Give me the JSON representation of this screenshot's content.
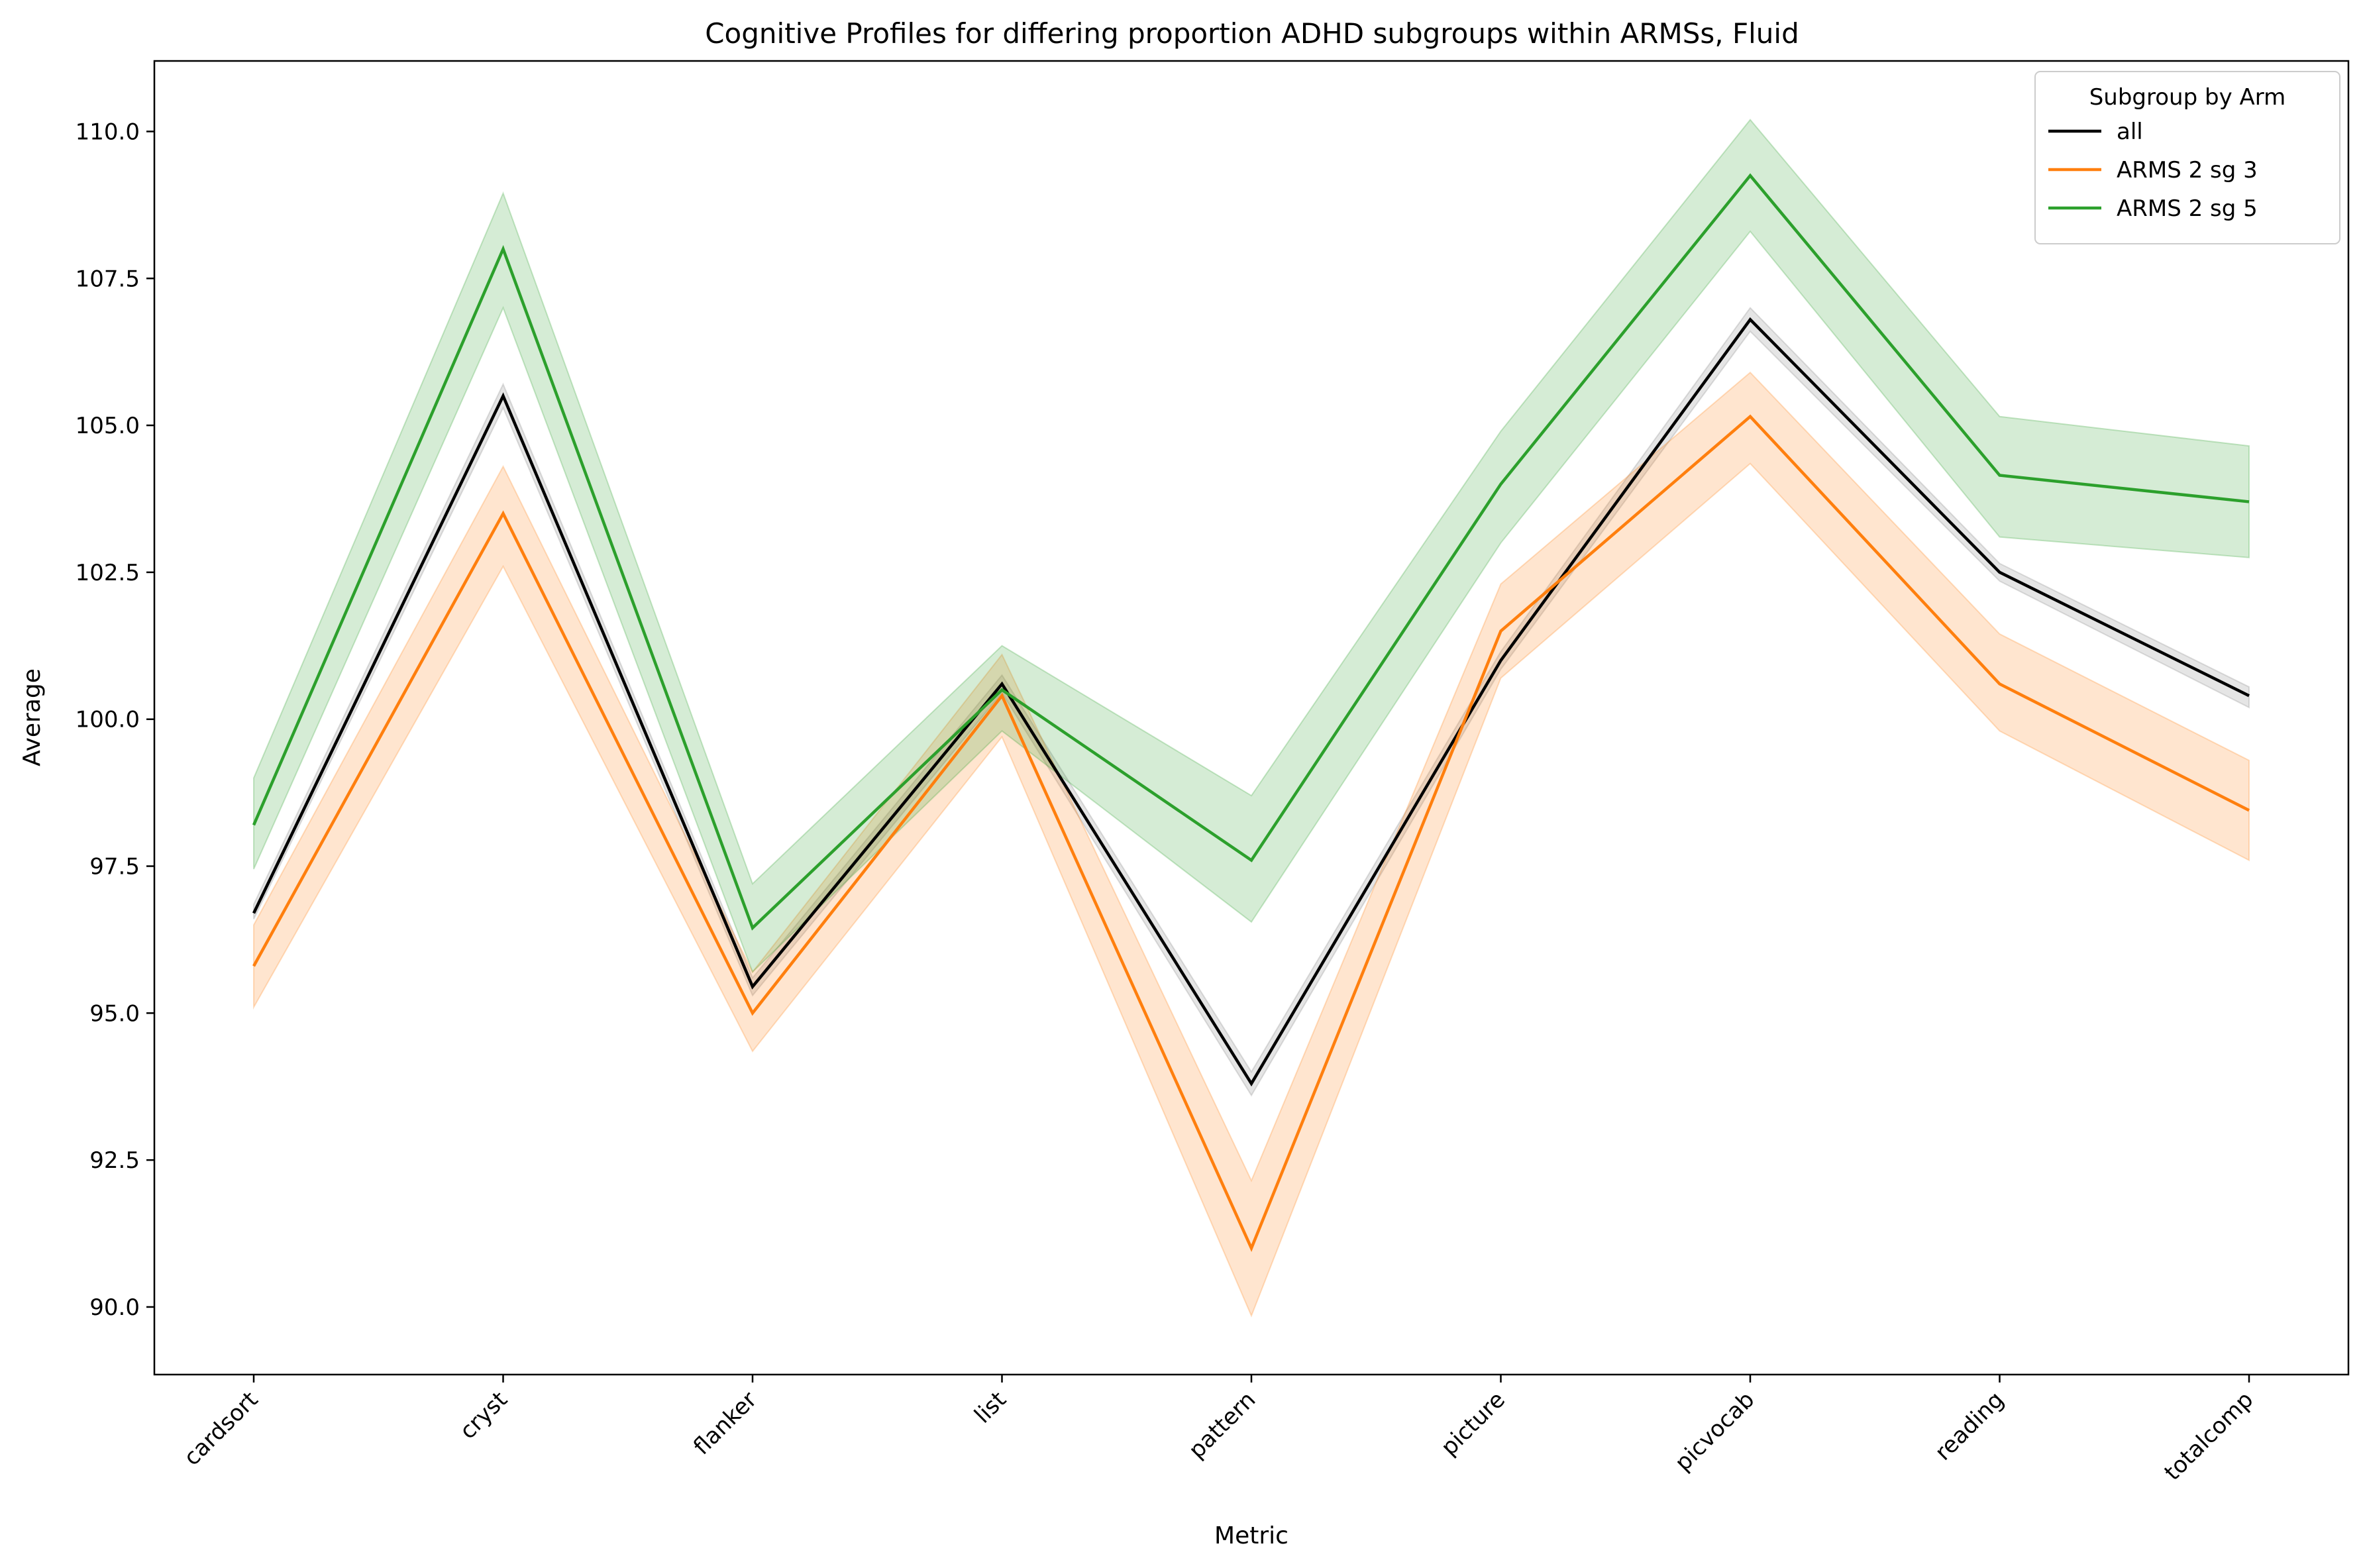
{
  "chart_data": {
    "type": "line",
    "title": "Cognitive Profiles for differing proportion ADHD subgroups within ARMSs, Fluid",
    "xlabel": "Metric",
    "ylabel": "Average",
    "ylim": [
      88.85,
      111.2
    ],
    "yticks": [
      90.0,
      92.5,
      95.0,
      97.5,
      100.0,
      102.5,
      105.0,
      107.5,
      110.0
    ],
    "ytick_labels": [
      "90.0",
      "92.5",
      "95.0",
      "97.5",
      "100.0",
      "102.5",
      "105.0",
      "107.5",
      "110.0"
    ],
    "categories": [
      "cardsort",
      "cryst",
      "flanker",
      "list",
      "pattern",
      "picture",
      "picvocab",
      "reading",
      "totalcomp"
    ],
    "grid": false,
    "legend": {
      "title": "Subgroup by Arm",
      "placement": "top-right"
    },
    "series": [
      {
        "name": "all",
        "color": "#000000",
        "band_color": "#7f7f7f",
        "values": [
          96.7,
          105.5,
          95.45,
          100.6,
          93.8,
          101.0,
          106.8,
          102.5,
          100.4
        ],
        "lower": [
          96.6,
          105.3,
          95.3,
          100.45,
          93.6,
          100.85,
          106.6,
          102.35,
          100.2
        ],
        "upper": [
          96.85,
          105.7,
          95.6,
          100.75,
          94.0,
          101.15,
          107.0,
          102.65,
          100.55
        ]
      },
      {
        "name": "ARMS 2 sg 3",
        "color": "#ff7f0e",
        "band_color": "#ff7f0e",
        "values": [
          95.8,
          103.5,
          95.0,
          100.4,
          91.0,
          101.5,
          105.15,
          100.6,
          98.45
        ],
        "lower": [
          95.1,
          102.6,
          94.35,
          99.7,
          89.85,
          100.7,
          104.35,
          99.8,
          97.6
        ],
        "upper": [
          96.5,
          104.3,
          95.7,
          101.1,
          92.15,
          102.3,
          105.9,
          101.45,
          99.3
        ]
      },
      {
        "name": "ARMS 2 sg 5",
        "color": "#2ca02c",
        "band_color": "#2ca02c",
        "values": [
          98.2,
          108.0,
          96.45,
          100.5,
          97.6,
          104.0,
          109.25,
          104.15,
          103.7
        ],
        "lower": [
          97.45,
          107.0,
          95.7,
          99.8,
          96.55,
          103.0,
          108.3,
          103.1,
          102.75
        ],
        "upper": [
          99.0,
          108.95,
          97.2,
          101.25,
          98.7,
          104.9,
          110.2,
          105.15,
          104.65
        ]
      }
    ]
  }
}
